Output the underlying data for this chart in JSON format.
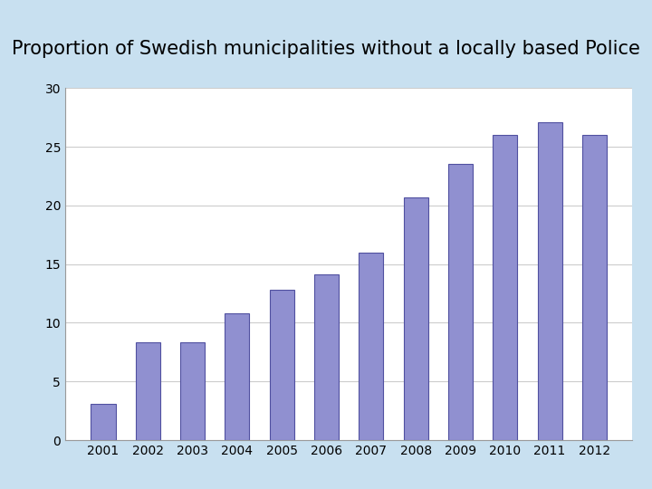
{
  "title": "Proportion of Swedish municipalities without a locally based Police",
  "years": [
    2001,
    2002,
    2003,
    2004,
    2005,
    2006,
    2007,
    2008,
    2009,
    2010,
    2011,
    2012
  ],
  "values": [
    3.1,
    8.3,
    8.3,
    10.8,
    12.8,
    14.1,
    16.0,
    20.7,
    23.5,
    26.0,
    27.1,
    26.0
  ],
  "bar_color": "#9090D0",
  "bar_edge_color": "#5050A0",
  "background_color": "#C8E0F0",
  "plot_background_color": "#FFFFFF",
  "ylim": [
    0,
    30
  ],
  "yticks": [
    0,
    5,
    10,
    15,
    20,
    25,
    30
  ],
  "title_fontsize": 15,
  "tick_fontsize": 10,
  "grid_color": "#CCCCCC",
  "bar_width": 0.55
}
